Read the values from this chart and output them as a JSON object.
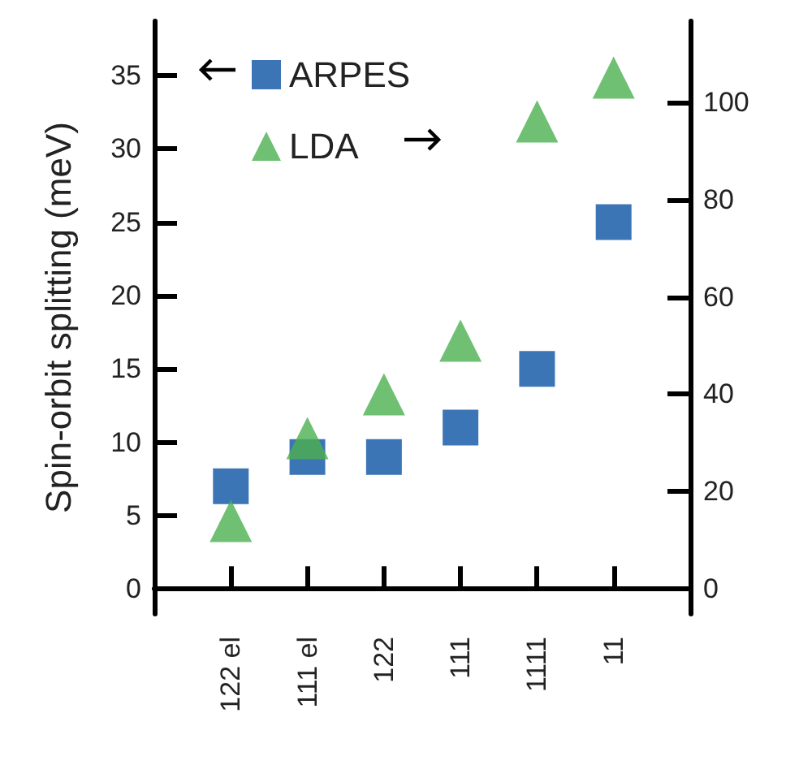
{
  "chart_data": {
    "type": "scatter",
    "ylabel": "Spin-orbit splitting (meV)",
    "categories": [
      "122 el",
      "111 el",
      "122",
      "111",
      "1111",
      "11"
    ],
    "series": [
      {
        "name": "ARPES",
        "color": "#0b52a3",
        "marker": "square",
        "values": [
          7,
          9,
          9,
          11,
          15,
          25
        ]
      },
      {
        "name": "LDA",
        "color": "#4cb050",
        "marker": "triangle",
        "axis": "y2",
        "values": [
          14,
          31,
          40,
          51,
          96,
          105
        ]
      }
    ],
    "ylim": [
      -1.7,
      38.7
    ],
    "yticks": [
      0,
      5,
      10,
      15,
      20,
      25,
      30,
      35
    ],
    "y2lim": [
      -5.1,
      116.6
    ],
    "y2ticks": [
      0,
      20,
      40,
      60,
      80,
      100
    ],
    "legend": "top left",
    "grid": false
  }
}
